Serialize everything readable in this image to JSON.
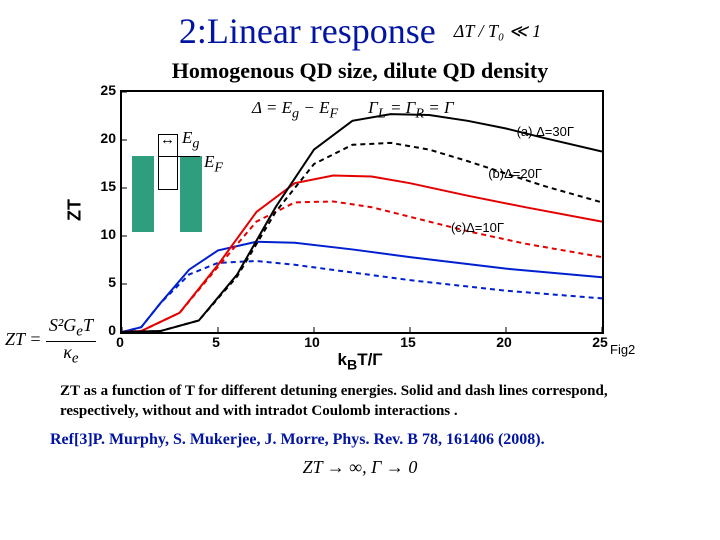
{
  "title": "2:Linear response",
  "title_condition": "ΔT / T₀ ≪ 1",
  "subtitle": "Homogenous QD size, dilute QD density",
  "yticks": [
    0,
    5,
    10,
    15,
    20,
    25
  ],
  "ymax": 25,
  "xticks": [
    0,
    5,
    10,
    15,
    20,
    25
  ],
  "xmax": 25,
  "ylabel": "ZT",
  "xlabel_html": "k<sub>B</sub>T/Γ",
  "fig_label": "Fig2",
  "eq_delta": "Δ = E_g − E_F",
  "eq_gamma": "Γ_L = Γ_R = Γ",
  "labels": {
    "a": "(a) Δ=30Γ",
    "b": "(b)Δ=20Γ",
    "c": "(c)Δ=10Γ"
  },
  "eg": "E_g",
  "ef": "E_F",
  "zt_formula_html": "ZT = S²G<sub>e</sub>T / κ<sub>e</sub>",
  "caption": "ZT as a function of T for different detuning energies. Solid and dash lines correspond, respectively, without and with intradot Coulomb interactions .",
  "ref": "Ref[3]P. Murphy, S. Mukerjee, J. Morre, Phys. Rev. B 78, 161406 (2008).",
  "bottom": "ZT → ∞,    Γ → 0",
  "curves": {
    "a_solid": {
      "color": "#000000",
      "dash": "",
      "pts": [
        [
          0,
          0
        ],
        [
          2,
          0.1
        ],
        [
          4,
          1.2
        ],
        [
          6,
          6
        ],
        [
          8,
          13
        ],
        [
          10,
          19
        ],
        [
          12,
          22
        ],
        [
          14,
          22.7
        ],
        [
          16,
          22.6
        ],
        [
          18,
          22
        ],
        [
          20,
          21.2
        ],
        [
          22,
          20.2
        ],
        [
          25,
          18.8
        ]
      ]
    },
    "a_dash": {
      "color": "#000000",
      "dash": "5 4",
      "pts": [
        [
          0,
          0
        ],
        [
          2,
          0.1
        ],
        [
          4,
          1.2
        ],
        [
          6,
          5.8
        ],
        [
          8,
          12.5
        ],
        [
          10,
          17.5
        ],
        [
          12,
          19.5
        ],
        [
          14,
          19.7
        ],
        [
          16,
          19
        ],
        [
          18,
          17.8
        ],
        [
          20,
          16.5
        ],
        [
          22,
          15.2
        ],
        [
          25,
          13.5
        ]
      ]
    },
    "b_solid": {
      "color": "#e40000",
      "dash": "",
      "pts": [
        [
          0,
          0
        ],
        [
          1,
          0.1
        ],
        [
          3,
          2
        ],
        [
          5,
          7
        ],
        [
          7,
          12.5
        ],
        [
          9,
          15.5
        ],
        [
          11,
          16.3
        ],
        [
          13,
          16.2
        ],
        [
          15,
          15.5
        ],
        [
          18,
          14.2
        ],
        [
          21,
          13
        ],
        [
          25,
          11.5
        ]
      ]
    },
    "b_dash": {
      "color": "#e40000",
      "dash": "5 4",
      "pts": [
        [
          0,
          0
        ],
        [
          1,
          0.1
        ],
        [
          3,
          2
        ],
        [
          5,
          6.8
        ],
        [
          7,
          11.5
        ],
        [
          9,
          13.5
        ],
        [
          11,
          13.6
        ],
        [
          13,
          13
        ],
        [
          15,
          12
        ],
        [
          18,
          10.5
        ],
        [
          21,
          9.2
        ],
        [
          25,
          7.8
        ]
      ]
    },
    "c_solid": {
      "color": "#0020d0",
      "dash": "",
      "pts": [
        [
          0,
          0
        ],
        [
          1,
          0.5
        ],
        [
          2,
          3
        ],
        [
          3.5,
          6.5
        ],
        [
          5,
          8.5
        ],
        [
          7,
          9.4
        ],
        [
          9,
          9.3
        ],
        [
          12,
          8.6
        ],
        [
          15,
          7.8
        ],
        [
          20,
          6.6
        ],
        [
          25,
          5.7
        ]
      ]
    },
    "c_dash": {
      "color": "#0020d0",
      "dash": "5 4",
      "pts": [
        [
          0,
          0
        ],
        [
          1,
          0.5
        ],
        [
          2,
          3
        ],
        [
          3.5,
          6
        ],
        [
          5,
          7.2
        ],
        [
          7,
          7.4
        ],
        [
          9,
          7
        ],
        [
          12,
          6.2
        ],
        [
          15,
          5.4
        ],
        [
          20,
          4.3
        ],
        [
          25,
          3.5
        ]
      ]
    }
  }
}
